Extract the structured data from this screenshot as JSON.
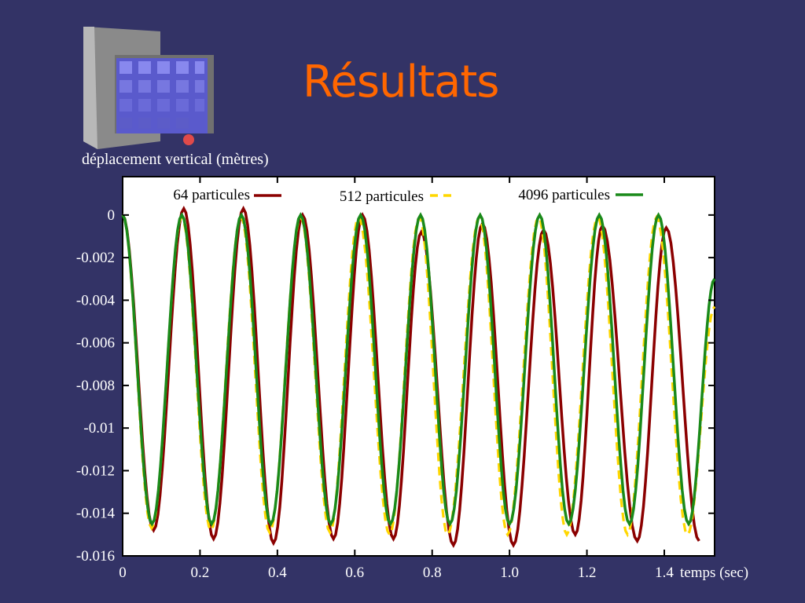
{
  "slide": {
    "title": "Résultats"
  },
  "thumbnail": {
    "icon": "particle-cube-render-icon",
    "colors": {
      "wall": "#8a8a8a",
      "particles": "#6a6ad8",
      "marker": "#e04a4a"
    }
  },
  "chart_data": {
    "type": "line",
    "ylabel": "déplacement vertical (mètres)",
    "xlabel": "temps (sec)",
    "xlim": [
      0,
      1.53
    ],
    "ylim": [
      -0.016,
      0.0018
    ],
    "x_ticks": [
      "0",
      "0.2",
      "0.4",
      "0.6",
      "0.8",
      "1.0",
      "1.2",
      "1.4"
    ],
    "x_tick_values": [
      0,
      0.2,
      0.4,
      0.6,
      0.8,
      1.0,
      1.2,
      1.4
    ],
    "y_ticks": [
      "0",
      "-0.002",
      "-0.004",
      "-0.006",
      "-0.008",
      "-0.01",
      "-0.012",
      "-0.014",
      "-0.016"
    ],
    "y_tick_values": [
      0,
      -0.002,
      -0.004,
      -0.006,
      -0.008,
      -0.01,
      -0.012,
      -0.014,
      -0.016
    ],
    "zero_line": {
      "y": 0,
      "style": "dotted",
      "color": "#ffffff"
    },
    "legend_placement": "top",
    "series": [
      {
        "name": "64 particules",
        "color": "#8b0000",
        "dash": "solid",
        "x": [
          0.0,
          0.08,
          0.158,
          0.235,
          0.312,
          0.39,
          0.465,
          0.545,
          0.62,
          0.7,
          0.772,
          0.855,
          0.93,
          1.01,
          1.088,
          1.17,
          1.24,
          1.33,
          1.405,
          1.49
        ],
        "y": [
          0.0,
          -0.0148,
          0.0003,
          -0.0152,
          0.0003,
          -0.0154,
          0.0,
          -0.0152,
          0.0,
          -0.0152,
          -0.0008,
          -0.0155,
          -0.0004,
          -0.0155,
          -0.0007,
          -0.015,
          -0.0005,
          -0.0153,
          -0.0006,
          -0.0153
        ]
      },
      {
        "name": "512 particules",
        "color": "#ffd700",
        "dash": "dashed",
        "x": [
          0.0,
          0.075,
          0.153,
          0.228,
          0.306,
          0.38,
          0.46,
          0.536,
          0.61,
          0.69,
          0.767,
          0.84,
          0.922,
          0.995,
          1.075,
          1.148,
          1.228,
          1.305,
          1.38,
          1.46,
          1.53
        ],
        "y": [
          0.0,
          -0.0147,
          -0.0001,
          -0.0148,
          -0.0001,
          -0.0149,
          -0.0001,
          -0.0149,
          -0.0001,
          -0.015,
          -0.0001,
          -0.015,
          -0.0001,
          -0.015,
          -0.0001,
          -0.015,
          -0.0001,
          -0.015,
          -0.0001,
          -0.015,
          -0.0043
        ]
      },
      {
        "name": "4096 particules",
        "color": "#1a8a1a",
        "dash": "solid",
        "x": [
          0.0,
          0.076,
          0.153,
          0.23,
          0.307,
          0.383,
          0.46,
          0.538,
          0.615,
          0.692,
          0.77,
          0.846,
          0.924,
          1.0,
          1.078,
          1.153,
          1.232,
          1.31,
          1.385,
          1.463,
          1.53
        ],
        "y": [
          0.0,
          -0.0145,
          0.0,
          -0.0145,
          0.0,
          -0.0145,
          0.0,
          -0.0145,
          0.0,
          -0.0145,
          0.0,
          -0.0145,
          0.0,
          -0.0145,
          0.0,
          -0.0145,
          0.0,
          -0.0145,
          0.0,
          -0.0145,
          -0.003
        ]
      }
    ]
  }
}
